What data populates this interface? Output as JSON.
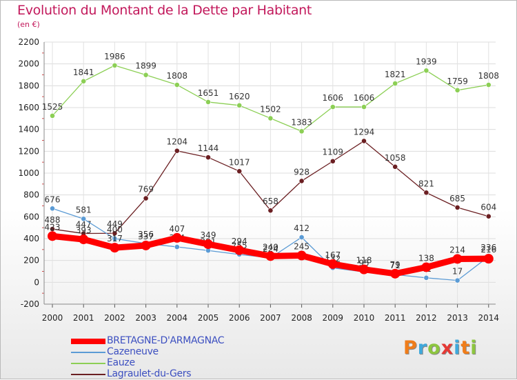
{
  "title": "Evolution du Montant de la Dette par Habitant",
  "subtitle": "(en €)",
  "logo": {
    "text": "Proxiti",
    "letters": [
      {
        "ch": "P",
        "color": "#f07d1a"
      },
      {
        "ch": "r",
        "color": "#3fa9dc"
      },
      {
        "ch": "o",
        "color": "#8dc63f"
      },
      {
        "ch": "x",
        "color": "#e53935"
      },
      {
        "ch": "i",
        "color": "#3fa9dc"
      },
      {
        "ch": "t",
        "color": "#f07d1a"
      },
      {
        "ch": "i",
        "color": "#8dc63f"
      }
    ]
  },
  "legend": [
    {
      "name": "BRETAGNE-D'ARMAGNAC"
    },
    {
      "name": "Cazeneuve"
    },
    {
      "name": "Eauze"
    },
    {
      "name": "Lagraulet-du-Gers"
    }
  ],
  "chart_data": {
    "type": "line",
    "title": "Evolution du Montant de la Dette par Habitant",
    "subtitle": "(en €)",
    "x": [
      "2000",
      "2001",
      "2002",
      "2003",
      "2004",
      "2005",
      "2006",
      "2007",
      "2008",
      "2009",
      "2010",
      "2011",
      "2012",
      "2013",
      "2014"
    ],
    "ylim": [
      -200,
      2200
    ],
    "yticks": [
      -200,
      0,
      200,
      400,
      600,
      800,
      1000,
      1200,
      1400,
      1600,
      1800,
      2000,
      2200
    ],
    "grid": true,
    "legend_position": "bottom-left",
    "series": [
      {
        "name": "Eauze",
        "color": "#8ccf55",
        "values": [
          1525,
          1841,
          1986,
          1899,
          1808,
          1651,
          1620,
          1502,
          1383,
          1606,
          1606,
          1821,
          1939,
          1759,
          1808
        ],
        "labels": [
          "1525",
          "1841",
          "1986",
          "1899",
          "1808",
          "1651",
          "1620",
          "1502",
          "1383",
          "1606",
          "1606",
          "1821",
          "1939",
          "1759",
          "1808"
        ]
      },
      {
        "name": "Lagraulet-du-Gers",
        "color": "#6b1f22",
        "values": [
          488,
          447,
          449,
          769,
          1204,
          1144,
          1017,
          658,
          928,
          1109,
          1294,
          1058,
          821,
          685,
          604
        ],
        "labels": [
          "488",
          "447",
          "449",
          "769",
          "1204",
          "1144",
          "1017",
          "658",
          "928",
          "1109",
          "1294",
          "1058",
          "821",
          "685",
          "604"
        ]
      },
      {
        "name": "Cazeneuve",
        "color": "#5b9bd5",
        "values": [
          676,
          581,
          400,
          356,
          324,
          291,
          255,
          224,
          412,
          132,
          95,
          71,
          41,
          17,
          236
        ],
        "labels": [
          "676",
          "581",
          "400",
          "356",
          "324",
          "291",
          "255",
          "224",
          "412",
          "132",
          "95",
          "71",
          "41",
          "17",
          "236"
        ]
      },
      {
        "name": "BRETAGNE-D'ARMAGNAC",
        "color": "#ff0000",
        "values": [
          423,
          393,
          317,
          337,
          407,
          349,
          294,
          240,
          245,
          167,
          118,
          79,
          138,
          214,
          216
        ],
        "labels": [
          "423",
          "393",
          "317",
          "337",
          "407",
          "349",
          "294",
          "240",
          "245",
          "167",
          "118",
          "79",
          "138",
          "214",
          "216"
        ]
      }
    ]
  }
}
